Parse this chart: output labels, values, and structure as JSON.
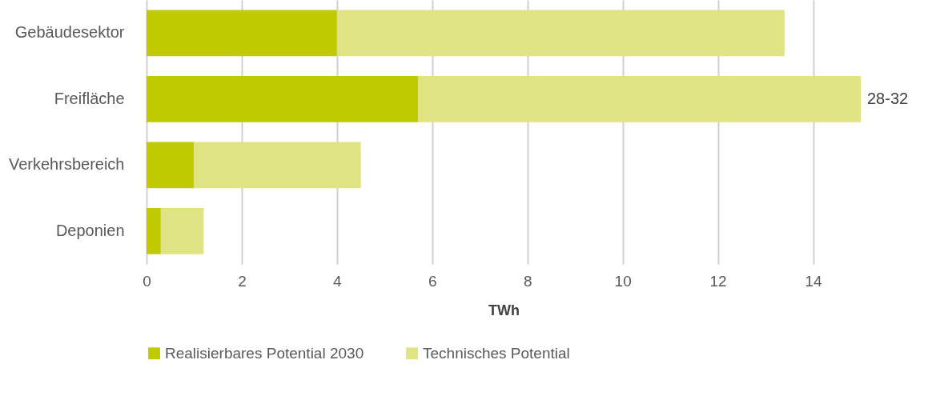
{
  "chart_data": {
    "type": "bar",
    "orientation": "horizontal",
    "stacked": true,
    "xlabel": "TWh",
    "categories": [
      "Gebäudesektor",
      "Freifläche",
      "Verkehrsbereich",
      "Deponien"
    ],
    "series": [
      {
        "name": "Realisierbares Potential 2030",
        "color": "#bfca00",
        "values": [
          4.0,
          5.7,
          1.0,
          0.3
        ]
      },
      {
        "name": "Technisches Potential",
        "color": "#dfe384",
        "values": [
          9.4,
          9.3,
          3.5,
          0.9
        ]
      }
    ],
    "xlim": [
      0,
      15
    ],
    "xticks": [
      0,
      2,
      4,
      6,
      8,
      10,
      12,
      14
    ],
    "grid": "x",
    "legend": "bottom",
    "annotations": [
      {
        "text": "28-32",
        "x": 15,
        "y": "Freifläche"
      }
    ]
  }
}
